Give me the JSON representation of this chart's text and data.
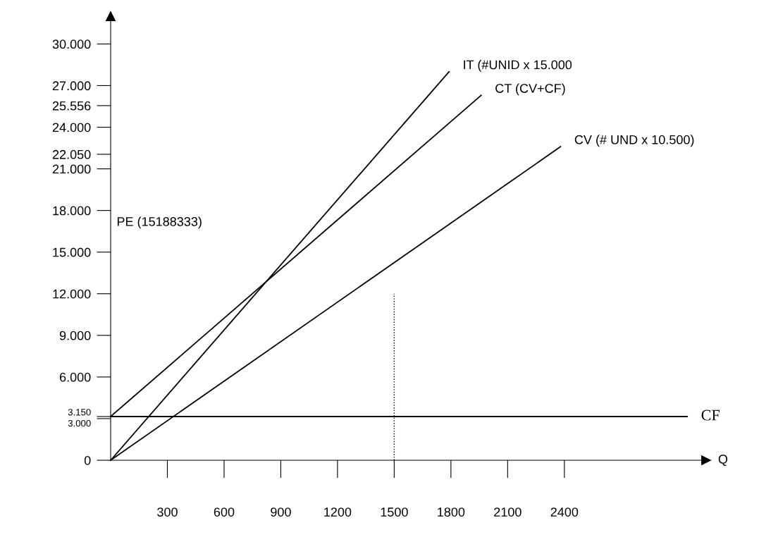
{
  "chart_data": {
    "type": "line",
    "xlabel": "Q",
    "xlim": [
      0,
      3150
    ],
    "ylim": [
      0,
      32000
    ],
    "xticks": [
      300,
      600,
      900,
      1200,
      1500,
      1800,
      2100,
      2400
    ],
    "yticks": [
      0,
      {
        "value": 3000,
        "label": "3.000"
      },
      {
        "value": 3150,
        "label": "3.150"
      },
      {
        "value": 6000,
        "label": "6.000"
      },
      {
        "value": 9000,
        "label": "9.000"
      },
      {
        "value": 12000,
        "label": "12.000"
      },
      {
        "value": 15000,
        "label": "15.000"
      },
      {
        "value": 18000,
        "label": "18.000"
      },
      {
        "value": 21000,
        "label": "21.000"
      },
      {
        "value": 22050,
        "label": "22.050"
      },
      {
        "value": 24000,
        "label": "24.000"
      },
      {
        "value": 25556,
        "label": "25.556"
      },
      {
        "value": 27000,
        "label": "27.000"
      },
      {
        "value": 30000,
        "label": "30.000"
      }
    ],
    "series": [
      {
        "name": "IT (#UNID x 15.000",
        "color": "#000000",
        "x": [
          0,
          1790
        ],
        "values": [
          0,
          28000
        ]
      },
      {
        "name": "CT (CV+CF)",
        "color": "#000000",
        "x": [
          0,
          1960
        ],
        "values": [
          3150,
          26300
        ]
      },
      {
        "name": "CV (# UND x 10.500)",
        "color": "#000000",
        "x": [
          0,
          2380
        ],
        "values": [
          0,
          22600
        ]
      },
      {
        "name": "CF",
        "color": "#000000",
        "x": [
          0,
          3050
        ],
        "values": [
          3150,
          3150
        ]
      },
      {
        "color": "#000000",
        "x": [
          1500,
          1500
        ],
        "values": [
          0,
          12000
        ],
        "line_style": "dotted"
      }
    ],
    "annotations": [
      "PE (15188333)"
    ],
    "grid": false,
    "legend": false,
    "marker": "none",
    "line_style": "solid"
  }
}
